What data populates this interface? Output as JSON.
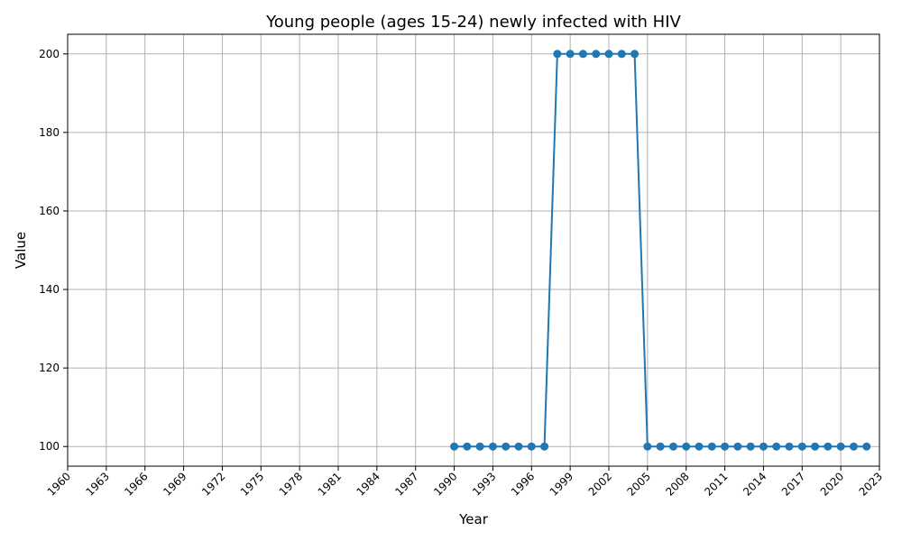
{
  "chart_data": {
    "type": "line",
    "title": "Young people (ages 15-24) newly infected with HIV",
    "xlabel": "Year",
    "ylabel": "Value",
    "xlim": [
      1960,
      2023
    ],
    "ylim": [
      95,
      205
    ],
    "x_ticks": [
      1960,
      1963,
      1966,
      1969,
      1972,
      1975,
      1978,
      1981,
      1984,
      1987,
      1990,
      1993,
      1996,
      1999,
      2002,
      2005,
      2008,
      2011,
      2014,
      2017,
      2020,
      2023
    ],
    "y_ticks": [
      100,
      120,
      140,
      160,
      180,
      200
    ],
    "grid": true,
    "series": [
      {
        "color": "#1f77b4",
        "x": [
          1990,
          1991,
          1992,
          1993,
          1994,
          1995,
          1996,
          1997,
          1998,
          1999,
          2000,
          2001,
          2002,
          2003,
          2004,
          2005,
          2006,
          2007,
          2008,
          2009,
          2010,
          2011,
          2012,
          2013,
          2014,
          2015,
          2016,
          2017,
          2018,
          2019,
          2020,
          2021,
          2022
        ],
        "values": [
          100,
          100,
          100,
          100,
          100,
          100,
          100,
          100,
          200,
          200,
          200,
          200,
          200,
          200,
          200,
          100,
          100,
          100,
          100,
          100,
          100,
          100,
          100,
          100,
          100,
          100,
          100,
          100,
          100,
          100,
          100,
          100,
          100
        ]
      }
    ]
  }
}
